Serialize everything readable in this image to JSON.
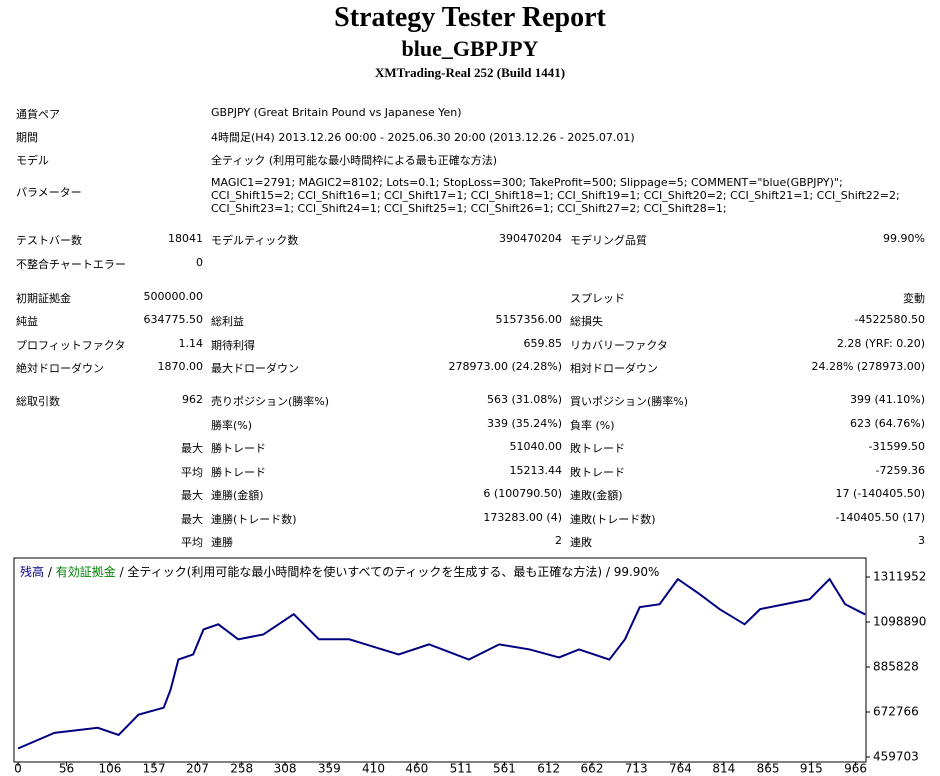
{
  "header": {
    "title": "Strategy Tester Report",
    "subtitle": "blue_GBPJPY",
    "build": "XMTrading-Real 252 (Build 1441)"
  },
  "info": [
    [
      "通貨ペア",
      "GBPJPY (Great Britain Pound vs Japanese Yen)"
    ],
    [
      "期間",
      "4時間足(H4) 2013.12.26 00:00 - 2025.06.30 20:00 (2013.12.26 - 2025.07.01)"
    ],
    [
      "モデル",
      "全ティック (利用可能な最小時間枠による最も正確な方法)"
    ],
    [
      "パラメーター",
      "MAGIC1=2791; MAGIC2=8102; Lots=0.1; StopLoss=300; TakeProfit=500; Slippage=5; COMMENT=\"blue(GBPJPY)\"; CCI_Shift15=2; CCI_Shift16=1; CCI_Shift17=1; CCI_Shift18=1; CCI_Shift19=1; CCI_Shift20=2; CCI_Shift21=1; CCI_Shift22=2; CCI_Shift23=1; CCI_Shift24=1; CCI_Shift25=1; CCI_Shift26=1; CCI_Shift27=2; CCI_Shift28=1;"
    ]
  ],
  "stats": [
    [
      "テストバー数",
      "18041",
      "モデルティック数",
      "390470204",
      "モデリング品質",
      "99.90%"
    ],
    [
      "不整合チャートエラー",
      "0",
      null,
      null,
      null,
      null
    ],
    [
      "初期証拠金",
      "500000.00",
      null,
      null,
      "スプレッド",
      "変動"
    ],
    [
      "純益",
      "634775.50",
      "総利益",
      "5157356.00",
      "総損失",
      "-4522580.50"
    ],
    [
      "プロフィットファクタ",
      "1.14",
      "期待利得",
      "659.85",
      "リカバリーファクタ",
      "2.28 (YRF: 0.20)"
    ],
    [
      "絶対ドローダウン",
      "1870.00",
      "最大ドローダウン",
      "278973.00 (24.28%)",
      "相対ドローダウン",
      "24.28% (278973.00)"
    ],
    [
      "総取引数",
      "962",
      "売りポジション(勝率%)",
      "563 (31.08%)",
      "買いポジション(勝率%)",
      "399 (41.10%)"
    ],
    [
      null,
      null,
      "勝率(%)",
      "339 (35.24%)",
      "負率 (%)",
      "623 (64.76%)"
    ],
    [
      null,
      "最大",
      "勝トレード",
      "51040.00",
      "敗トレード",
      "-31599.50"
    ],
    [
      null,
      "平均",
      "勝トレード",
      "15213.44",
      "敗トレード",
      "-7259.36"
    ],
    [
      null,
      "最大",
      "連勝(金額)",
      "6 (100790.50)",
      "連敗(金額)",
      "17 (-140405.50)"
    ],
    [
      null,
      "最大",
      "連勝(トレード数)",
      "173283.00 (4)",
      "連敗(トレード数)",
      "-140405.50 (17)"
    ],
    [
      null,
      "平均",
      "連勝",
      "2",
      "連敗",
      "3"
    ]
  ],
  "chart_data": {
    "type": "line",
    "legend": [
      {
        "text": "残高",
        "color": "#000080"
      },
      {
        "text": "/",
        "color": "#000000"
      },
      {
        "text": "有効証拠金",
        "color": "#008000"
      },
      {
        "text": "/ 全ティック(利用可能な最小時間枠を使いすべてのティックを生成する、最も正確な方法) / 99.90%",
        "color": "#000000"
      }
    ],
    "x": [
      0,
      42,
      92,
      116,
      139,
      168,
      176,
      185,
      202,
      214,
      231,
      254,
      283,
      318,
      347,
      382,
      439,
      474,
      520,
      555,
      590,
      624,
      647,
      682,
      700,
      717,
      740,
      761,
      786,
      809,
      838,
      856,
      884,
      913,
      936,
      954,
      977
    ],
    "series": [
      {
        "color": "#000080",
        "values": [
          500000,
          574000,
          598000,
          564000,
          660000,
          693000,
          779000,
          921000,
          945000,
          1064000,
          1088000,
          1017000,
          1040000,
          1136000,
          1017000,
          1017000,
          945000,
          993000,
          921000,
          993000,
          969000,
          931000,
          969000,
          921000,
          1017000,
          1169000,
          1183000,
          1302000,
          1231000,
          1160000,
          1088000,
          1160000,
          1183000,
          1207000,
          1302000,
          1183000,
          1134775
        ]
      }
    ],
    "xlim": [
      0,
      978
    ],
    "xticks": [
      0,
      56,
      106,
      157,
      207,
      258,
      308,
      359,
      410,
      460,
      511,
      561,
      612,
      662,
      713,
      764,
      814,
      865,
      915,
      966
    ],
    "ylim": [
      459703,
      1383000
    ],
    "yticks": [
      459703,
      672766,
      885828,
      1098890,
      1311952
    ]
  }
}
